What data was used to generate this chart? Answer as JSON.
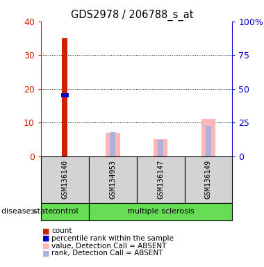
{
  "title": "GDS2978 / 206788_s_at",
  "samples": [
    "GSM136140",
    "GSM134953",
    "GSM136147",
    "GSM136149"
  ],
  "groups": [
    "control",
    "multiple sclerosis",
    "multiple sclerosis",
    "multiple sclerosis"
  ],
  "bar_data": {
    "GSM136140": {
      "count": 35,
      "percentile": 18,
      "value_absent": 0,
      "rank_absent": 0
    },
    "GSM134953": {
      "count": 0,
      "percentile": 0,
      "value_absent": 7,
      "rank_absent": 7.2
    },
    "GSM136147": {
      "count": 0,
      "percentile": 0,
      "value_absent": 5,
      "rank_absent": 4.8
    },
    "GSM136149": {
      "count": 0,
      "percentile": 0,
      "value_absent": 11,
      "rank_absent": 9
    }
  },
  "ylim_left": [
    0,
    40
  ],
  "ylim_right": [
    0,
    100
  ],
  "yticks_left": [
    0,
    10,
    20,
    30,
    40
  ],
  "yticks_right": [
    0,
    25,
    50,
    75,
    100
  ],
  "ytick_labels_right": [
    "0",
    "25",
    "50",
    "75",
    "100%"
  ],
  "left_axis_color": "#cc2200",
  "right_axis_color": "#0000cc",
  "count_color": "#cc2200",
  "percentile_color": "#0000cc",
  "value_absent_color": "#ffb6b6",
  "rank_absent_color": "#b0b0e0",
  "grid_color": "#000000",
  "sample_area_color": "#d3d3d3",
  "disease_label": "disease state",
  "legend_items": [
    {
      "label": "count",
      "color": "#cc2200"
    },
    {
      "label": "percentile rank within the sample",
      "color": "#0000cc"
    },
    {
      "label": "value, Detection Call = ABSENT",
      "color": "#ffb6b6"
    },
    {
      "label": "rank, Detection Call = ABSENT",
      "color": "#b0b0e0"
    }
  ]
}
